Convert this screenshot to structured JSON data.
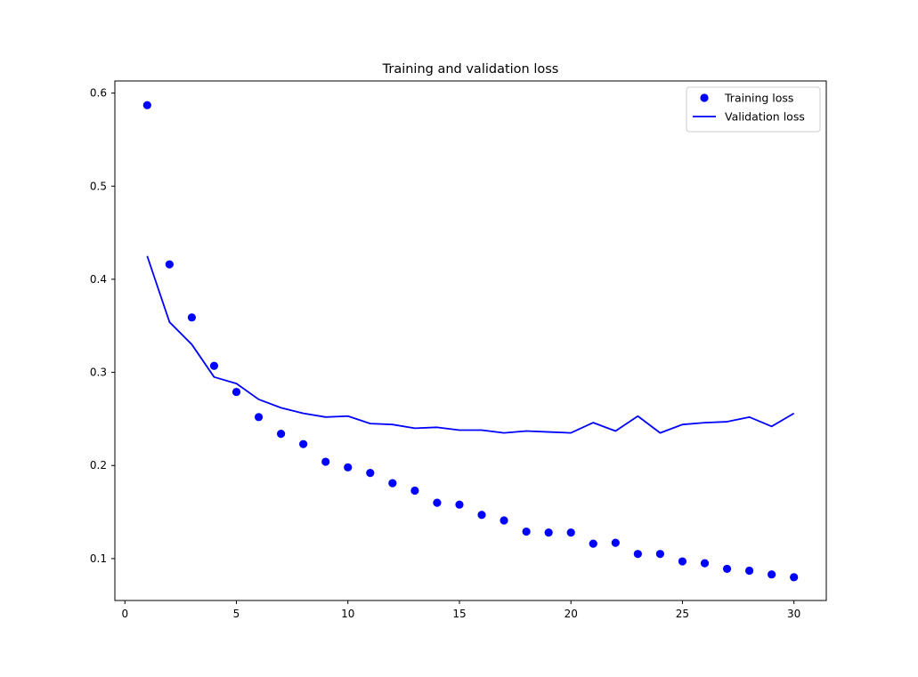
{
  "chart_data": {
    "type": "scatter",
    "title": "Training and validation loss",
    "xlabel": "",
    "ylabel": "",
    "xlim": [
      -0.45,
      31.45
    ],
    "ylim": [
      0.055,
      0.613
    ],
    "xticks": [
      0,
      5,
      10,
      15,
      20,
      25,
      30
    ],
    "yticks": [
      0.1,
      0.2,
      0.3,
      0.4,
      0.5,
      0.6
    ],
    "grid": false,
    "legend_position": "top-right",
    "series": [
      {
        "name": "Training loss",
        "style": "markers",
        "color": "#0000ff",
        "x": [
          1,
          2,
          3,
          4,
          5,
          6,
          7,
          8,
          9,
          10,
          11,
          12,
          13,
          14,
          15,
          16,
          17,
          18,
          19,
          20,
          21,
          22,
          23,
          24,
          25,
          26,
          27,
          28,
          29,
          30
        ],
        "values": [
          0.587,
          0.416,
          0.359,
          0.307,
          0.279,
          0.252,
          0.234,
          0.223,
          0.204,
          0.198,
          0.192,
          0.181,
          0.173,
          0.16,
          0.158,
          0.147,
          0.141,
          0.129,
          0.128,
          0.128,
          0.116,
          0.117,
          0.105,
          0.105,
          0.097,
          0.095,
          0.089,
          0.087,
          0.083,
          0.08
        ]
      },
      {
        "name": "Validation loss",
        "style": "line",
        "color": "#0000ff",
        "x": [
          1,
          2,
          3,
          4,
          5,
          6,
          7,
          8,
          9,
          10,
          11,
          12,
          13,
          14,
          15,
          16,
          17,
          18,
          19,
          20,
          21,
          22,
          23,
          24,
          25,
          26,
          27,
          28,
          29,
          30
        ],
        "values": [
          0.425,
          0.354,
          0.33,
          0.295,
          0.288,
          0.271,
          0.262,
          0.256,
          0.252,
          0.253,
          0.245,
          0.244,
          0.24,
          0.241,
          0.238,
          0.238,
          0.235,
          0.237,
          0.236,
          0.235,
          0.246,
          0.237,
          0.253,
          0.235,
          0.244,
          0.246,
          0.247,
          0.252,
          0.242,
          0.256
        ]
      }
    ]
  }
}
